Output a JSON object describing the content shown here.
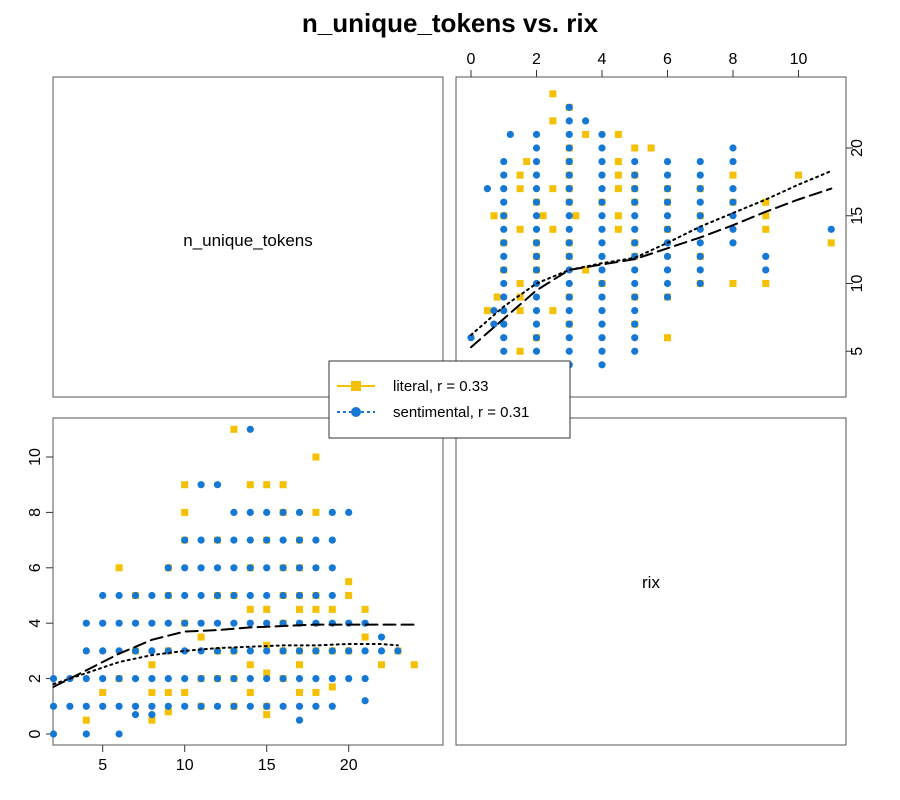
{
  "chart_data": {
    "type": "scatter",
    "title": "n_unique_tokens vs. rix",
    "variables": [
      "n_unique_tokens",
      "rix"
    ],
    "ranges": {
      "n_unique_tokens": [
        2,
        24
      ],
      "rix": [
        0,
        11
      ]
    },
    "ticks": {
      "n_unique_tokens": [
        "5",
        "10",
        "15",
        "20"
      ],
      "rix": [
        "0",
        "2",
        "4",
        "6",
        "8",
        "10"
      ]
    },
    "legend": {
      "position": "center",
      "entries": [
        {
          "series": "literal",
          "label": "literal, r = 0.33"
        },
        {
          "series": "sentimental",
          "label": "sentimental, r = 0.31"
        }
      ]
    },
    "series": [
      {
        "name": "literal",
        "color": "#F5C000",
        "marker": "square",
        "line": "long-dash",
        "points": [
          [
            4,
            0.5
          ],
          [
            5,
            1.5
          ],
          [
            6,
            2
          ],
          [
            6,
            6
          ],
          [
            7,
            3
          ],
          [
            7,
            5
          ],
          [
            8,
            0.5
          ],
          [
            8,
            1.5
          ],
          [
            8,
            2.5
          ],
          [
            9,
            0.8
          ],
          [
            9,
            1.5
          ],
          [
            9,
            3
          ],
          [
            9,
            5
          ],
          [
            9,
            6
          ],
          [
            10,
            1.5
          ],
          [
            10,
            4
          ],
          [
            10,
            7
          ],
          [
            10,
            8
          ],
          [
            10,
            9
          ],
          [
            11,
            1
          ],
          [
            11,
            2
          ],
          [
            11,
            3.5
          ],
          [
            12,
            2
          ],
          [
            12,
            3
          ],
          [
            12,
            5
          ],
          [
            12,
            7
          ],
          [
            13,
            1
          ],
          [
            13,
            2
          ],
          [
            13,
            3
          ],
          [
            13,
            5
          ],
          [
            13,
            11
          ],
          [
            14,
            1.5
          ],
          [
            14,
            2.5
          ],
          [
            14,
            4.5
          ],
          [
            14,
            6
          ],
          [
            14,
            9
          ],
          [
            15,
            0.7
          ],
          [
            15,
            1
          ],
          [
            15,
            2.2
          ],
          [
            15,
            3.2
          ],
          [
            15,
            4.5
          ],
          [
            15,
            7
          ],
          [
            15,
            9
          ],
          [
            16,
            2
          ],
          [
            16,
            3
          ],
          [
            16,
            4
          ],
          [
            16,
            5
          ],
          [
            16,
            6
          ],
          [
            16,
            8
          ],
          [
            16,
            9
          ],
          [
            17,
            1.5
          ],
          [
            17,
            2.5
          ],
          [
            17,
            3
          ],
          [
            17,
            4.5
          ],
          [
            17,
            5
          ],
          [
            17,
            6
          ],
          [
            17,
            7
          ],
          [
            18,
            1.5
          ],
          [
            18,
            3
          ],
          [
            18,
            4.5
          ],
          [
            18,
            5
          ],
          [
            18,
            8
          ],
          [
            18,
            10
          ],
          [
            19,
            1.7
          ],
          [
            19,
            3
          ],
          [
            19,
            4.5
          ],
          [
            20,
            3
          ],
          [
            20,
            5
          ],
          [
            20,
            5.5
          ],
          [
            21,
            4.5
          ],
          [
            21,
            3.5
          ],
          [
            22,
            2.5
          ],
          [
            23,
            3
          ],
          [
            24,
            2.5
          ]
        ],
        "smooth": [
          [
            2,
            1.7
          ],
          [
            4,
            2.3
          ],
          [
            6,
            2.9
          ],
          [
            8,
            3.4
          ],
          [
            10,
            3.7
          ],
          [
            12,
            3.75
          ],
          [
            14,
            3.85
          ],
          [
            16,
            3.9
          ],
          [
            18,
            3.95
          ],
          [
            20,
            3.95
          ],
          [
            22,
            3.95
          ],
          [
            24,
            3.95
          ]
        ]
      },
      {
        "name": "sentimental",
        "color": "#1478D4",
        "marker": "circle",
        "line": "dotted",
        "points": [
          [
            2,
            0
          ],
          [
            2,
            1
          ],
          [
            2,
            2
          ],
          [
            3,
            1
          ],
          [
            3,
            2
          ],
          [
            4,
            0
          ],
          [
            4,
            1
          ],
          [
            4,
            2
          ],
          [
            4,
            3
          ],
          [
            4,
            4
          ],
          [
            5,
            1
          ],
          [
            5,
            2
          ],
          [
            5,
            3
          ],
          [
            5,
            4
          ],
          [
            5,
            5
          ],
          [
            6,
            0
          ],
          [
            6,
            1
          ],
          [
            6,
            2
          ],
          [
            6,
            3
          ],
          [
            6,
            4
          ],
          [
            6,
            5
          ],
          [
            7,
            0.7
          ],
          [
            7,
            1
          ],
          [
            7,
            2
          ],
          [
            7,
            3
          ],
          [
            7,
            4
          ],
          [
            7,
            5
          ],
          [
            8,
            0.7
          ],
          [
            8,
            1
          ],
          [
            8,
            2
          ],
          [
            8,
            3
          ],
          [
            8,
            4
          ],
          [
            8,
            5
          ],
          [
            9,
            1
          ],
          [
            9,
            2
          ],
          [
            9,
            3
          ],
          [
            9,
            4
          ],
          [
            9,
            5
          ],
          [
            9,
            6
          ],
          [
            10,
            1
          ],
          [
            10,
            2
          ],
          [
            10,
            3
          ],
          [
            10,
            4
          ],
          [
            10,
            5
          ],
          [
            10,
            6
          ],
          [
            10,
            7
          ],
          [
            11,
            1
          ],
          [
            11,
            2
          ],
          [
            11,
            3
          ],
          [
            11,
            4
          ],
          [
            11,
            5
          ],
          [
            11,
            6
          ],
          [
            11,
            7
          ],
          [
            11,
            9
          ],
          [
            12,
            1
          ],
          [
            12,
            2
          ],
          [
            12,
            3
          ],
          [
            12,
            4
          ],
          [
            12,
            5
          ],
          [
            12,
            6
          ],
          [
            12,
            7
          ],
          [
            12,
            9
          ],
          [
            13,
            1
          ],
          [
            13,
            2
          ],
          [
            13,
            3
          ],
          [
            13,
            4
          ],
          [
            13,
            5
          ],
          [
            13,
            6
          ],
          [
            13,
            7
          ],
          [
            13,
            8
          ],
          [
            14,
            1
          ],
          [
            14,
            2
          ],
          [
            14,
            3
          ],
          [
            14,
            4
          ],
          [
            14,
            5
          ],
          [
            14,
            6
          ],
          [
            14,
            7
          ],
          [
            14,
            8
          ],
          [
            14,
            11
          ],
          [
            15,
            1
          ],
          [
            15,
            2
          ],
          [
            15,
            3
          ],
          [
            15,
            4
          ],
          [
            15,
            5
          ],
          [
            15,
            6
          ],
          [
            15,
            7
          ],
          [
            15,
            8
          ],
          [
            16,
            1
          ],
          [
            16,
            2
          ],
          [
            16,
            3
          ],
          [
            16,
            4
          ],
          [
            16,
            5
          ],
          [
            16,
            6
          ],
          [
            16,
            7
          ],
          [
            16,
            8
          ],
          [
            17,
            0.5
          ],
          [
            17,
            1
          ],
          [
            17,
            2
          ],
          [
            17,
            3
          ],
          [
            17,
            4
          ],
          [
            17,
            5
          ],
          [
            17,
            6
          ],
          [
            17,
            7
          ],
          [
            17,
            8
          ],
          [
            18,
            1
          ],
          [
            18,
            2
          ],
          [
            18,
            3
          ],
          [
            18,
            4
          ],
          [
            18,
            5
          ],
          [
            18,
            6
          ],
          [
            18,
            7
          ],
          [
            19,
            1
          ],
          [
            19,
            2
          ],
          [
            19,
            3
          ],
          [
            19,
            4
          ],
          [
            19,
            5
          ],
          [
            19,
            6
          ],
          [
            19,
            7
          ],
          [
            19,
            8
          ],
          [
            20,
            2
          ],
          [
            20,
            3
          ],
          [
            20,
            4
          ],
          [
            20,
            8
          ],
          [
            21,
            1.2
          ],
          [
            21,
            2
          ],
          [
            21,
            3
          ],
          [
            21,
            4
          ],
          [
            22,
            3
          ],
          [
            22,
            3.5
          ],
          [
            23,
            3
          ]
        ],
        "smooth": [
          [
            2,
            1.8
          ],
          [
            4,
            2.2
          ],
          [
            6,
            2.6
          ],
          [
            8,
            2.85
          ],
          [
            10,
            3.0
          ],
          [
            12,
            3.1
          ],
          [
            14,
            3.15
          ],
          [
            16,
            3.2
          ],
          [
            18,
            3.2
          ],
          [
            20,
            3.25
          ],
          [
            22,
            3.25
          ],
          [
            23,
            3.2
          ]
        ]
      }
    ]
  }
}
